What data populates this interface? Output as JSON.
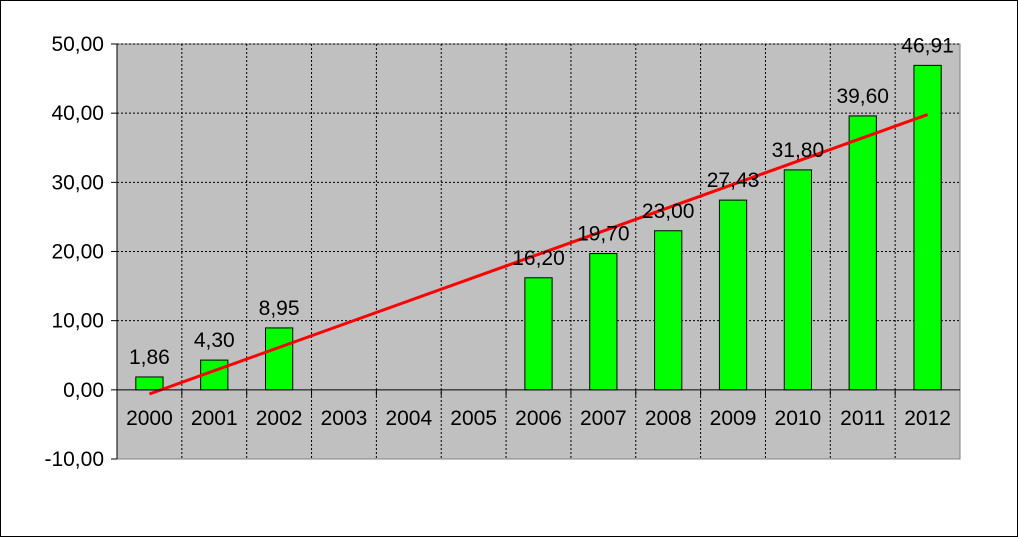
{
  "chart_data": {
    "type": "bar",
    "categories": [
      "2000",
      "2001",
      "2002",
      "2003",
      "2004",
      "2005",
      "2006",
      "2007",
      "2008",
      "2009",
      "2010",
      "2011",
      "2012"
    ],
    "series": [
      {
        "values": [
          1.86,
          4.3,
          8.95,
          null,
          null,
          null,
          16.2,
          19.7,
          23.0,
          27.43,
          31.8,
          39.6,
          46.91
        ]
      }
    ],
    "data_labels": [
      "1,86",
      "4,30",
      "8,95",
      "",
      "",
      "",
      "16,20",
      "19,70",
      "23,00",
      "27,43",
      "31,80",
      "39,60",
      "46,91"
    ],
    "trendline": {
      "type": "linear",
      "start": -0.6,
      "end": 39.8
    },
    "yticks": [
      "-10,00",
      "0,00",
      "10,00",
      "20,00",
      "30,00",
      "40,00",
      "50,00"
    ],
    "ylim": [
      -10,
      50
    ],
    "grid": true,
    "title": "",
    "xlabel": "",
    "ylabel": "",
    "colors": {
      "bar": "#00ff00",
      "bar_edge": "#000000",
      "plot_bg": "#c0c0c0",
      "trendline": "#ff0000"
    }
  }
}
